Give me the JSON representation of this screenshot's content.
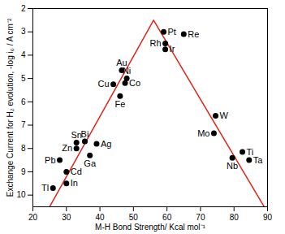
{
  "chart_data": {
    "type": "scatter",
    "x_label": "M-H Bond Strength/ Kcal mol⁻¹",
    "y_label": "Exchange Current for H₂ evolution, -log i₀ / A cm⁻²",
    "xlim": [
      20,
      90
    ],
    "xticks": [
      20,
      30,
      40,
      50,
      60,
      70,
      80,
      90
    ],
    "ylim": [
      2,
      10.5
    ],
    "yticks": [
      2,
      3,
      4,
      5,
      6,
      7,
      8,
      9,
      10
    ],
    "points": {
      "labels": [
        "Pt",
        "Re",
        "Rh",
        "Ir",
        "Au",
        "Ni",
        "Cu",
        "Co",
        "Fe",
        "Sn",
        "Bi",
        "Zn",
        "Ag",
        "Ga",
        "Pb",
        "Cd",
        "Tl",
        "In",
        "W",
        "Mo",
        "Nb",
        "Ti",
        "Ta"
      ],
      "x": [
        59,
        65,
        59.5,
        59.5,
        46.5,
        48,
        44,
        47.5,
        46,
        33,
        35.5,
        33,
        39,
        37,
        28,
        30,
        26,
        30,
        74.5,
        74,
        79.5,
        82.5,
        84.5
      ],
      "y": [
        3.0,
        3.1,
        3.5,
        3.75,
        4.65,
        5.0,
        5.25,
        5.2,
        5.75,
        7.75,
        7.7,
        8.0,
        7.8,
        8.3,
        8.5,
        9.0,
        9.7,
        9.5,
        6.6,
        7.35,
        8.4,
        8.15,
        8.5
      ],
      "color": "#000000",
      "marker": "circle"
    },
    "trend_line": {
      "x": [
        25,
        56,
        89
      ],
      "y": [
        10.5,
        2.5,
        10.5
      ],
      "color": "#e0241b",
      "line_style": "solid"
    }
  }
}
